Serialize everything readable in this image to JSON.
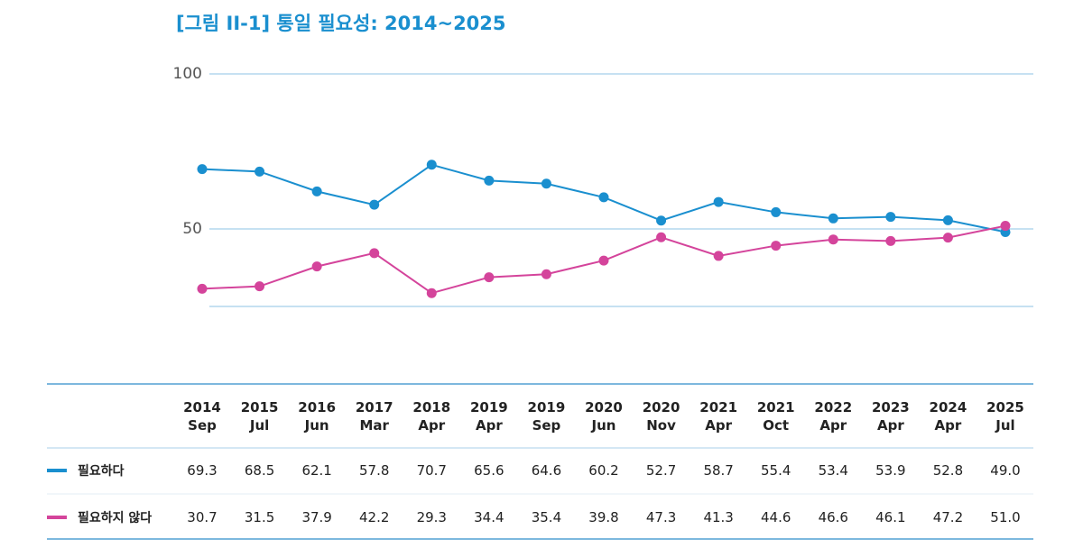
{
  "chart_data": {
    "type": "line",
    "title": "[그림 II-1] 통일 필요성: 2014~2025",
    "categories": [
      "2014\nSep",
      "2015\nJul",
      "2016\nJun",
      "2017\nMar",
      "2018\nApr",
      "2019\nApr",
      "2019\nSep",
      "2020\nJun",
      "2020\nNov",
      "2021\nApr",
      "2021\nOct",
      "2022\nApr",
      "2023\nApr",
      "2024\nApr",
      "2025\nJul"
    ],
    "series": [
      {
        "name": "필요하다",
        "color": "#1a8fcf",
        "values": [
          69.3,
          68.5,
          62.1,
          57.8,
          70.7,
          65.6,
          64.6,
          60.2,
          52.7,
          58.7,
          55.4,
          53.4,
          53.9,
          52.8,
          49.0
        ],
        "value_labels": [
          "69.3",
          "68.5",
          "62.1",
          "57.8",
          "70.7",
          "65.6",
          "64.6",
          "60.2",
          "52.7",
          "58.7",
          "55.4",
          "53.4",
          "53.9",
          "52.8",
          "49.0"
        ]
      },
      {
        "name": "필요하지 않다",
        "color": "#d4449b",
        "values": [
          30.7,
          31.5,
          37.9,
          42.2,
          29.3,
          34.4,
          35.4,
          39.8,
          47.3,
          41.3,
          44.6,
          46.6,
          46.1,
          47.2,
          51.0
        ],
        "value_labels": [
          "30.7",
          "31.5",
          "37.9",
          "42.2",
          "29.3",
          "34.4",
          "35.4",
          "39.8",
          "47.3",
          "41.3",
          "44.6",
          "46.6",
          "46.1",
          "47.2",
          "51.0"
        ]
      }
    ],
    "ylim": [
      0,
      100
    ],
    "yticks": [
      50,
      100
    ],
    "ygrid": [
      25,
      50,
      100
    ],
    "grid": true
  }
}
